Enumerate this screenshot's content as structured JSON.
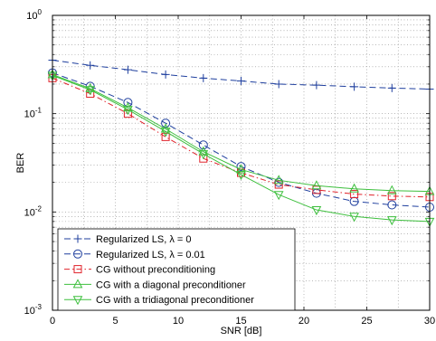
{
  "chart_data": {
    "type": "line",
    "xlabel": "SNR [dB]",
    "ylabel": "BER",
    "xlim": [
      0,
      30
    ],
    "ylim": [
      0.001,
      1
    ],
    "yscale": "log",
    "grid": true,
    "legend_position": "bottom-left",
    "x_ticks": [
      "0",
      "5",
      "10",
      "15",
      "20",
      "25",
      "30"
    ],
    "y_ticks": [
      {
        "base": "10",
        "exp": "0"
      },
      {
        "base": "10",
        "exp": "-1"
      },
      {
        "base": "10",
        "exp": "-2"
      },
      {
        "base": "10",
        "exp": "-3"
      }
    ],
    "x": [
      0,
      3,
      6,
      9,
      12,
      15,
      18,
      21,
      24,
      27,
      30
    ],
    "series": [
      {
        "name": "Regularized LS, λ = 0",
        "color": "#1f3f9e",
        "line": "dashed",
        "marker": "plus",
        "values": [
          0.35,
          0.31,
          0.28,
          0.25,
          0.23,
          0.215,
          0.2,
          0.195,
          0.188,
          0.182,
          0.178
        ]
      },
      {
        "name": "Regularized LS, λ = 0.01",
        "color": "#1f3f9e",
        "line": "dashed",
        "marker": "circle",
        "values": [
          0.26,
          0.19,
          0.13,
          0.08,
          0.048,
          0.029,
          0.02,
          0.0155,
          0.0128,
          0.0118,
          0.0112
        ]
      },
      {
        "name": "CG without preconditioning",
        "color": "#e0232b",
        "line": "dashdot",
        "marker": "square",
        "values": [
          0.23,
          0.16,
          0.1,
          0.058,
          0.035,
          0.025,
          0.019,
          0.0168,
          0.0152,
          0.0145,
          0.0142
        ]
      },
      {
        "name": "CG with a diagonal preconditioner",
        "color": "#3dbf3d",
        "line": "solid",
        "marker": "triangle-up",
        "values": [
          0.25,
          0.18,
          0.115,
          0.07,
          0.041,
          0.027,
          0.021,
          0.0185,
          0.0172,
          0.0165,
          0.0162
        ]
      },
      {
        "name": "CG with a tridiagonal preconditioner",
        "color": "#3dbf3d",
        "line": "solid",
        "marker": "triangle-down",
        "values": [
          0.245,
          0.175,
          0.11,
          0.066,
          0.039,
          0.024,
          0.015,
          0.0105,
          0.009,
          0.0083,
          0.008
        ]
      }
    ]
  }
}
